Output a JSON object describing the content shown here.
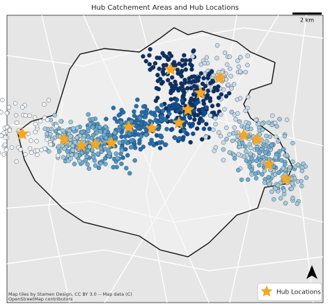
{
  "title": "Hub Catchement Areas and Hub Locations",
  "scale_bar": {
    "label": "2 km"
  },
  "attribution": [
    "Map tiles by Stamen Design, CC BY 3.0 -- Map data (C)",
    "OpenStreetMap contributors"
  ],
  "legend": {
    "label": "Hub Locations"
  }
}
